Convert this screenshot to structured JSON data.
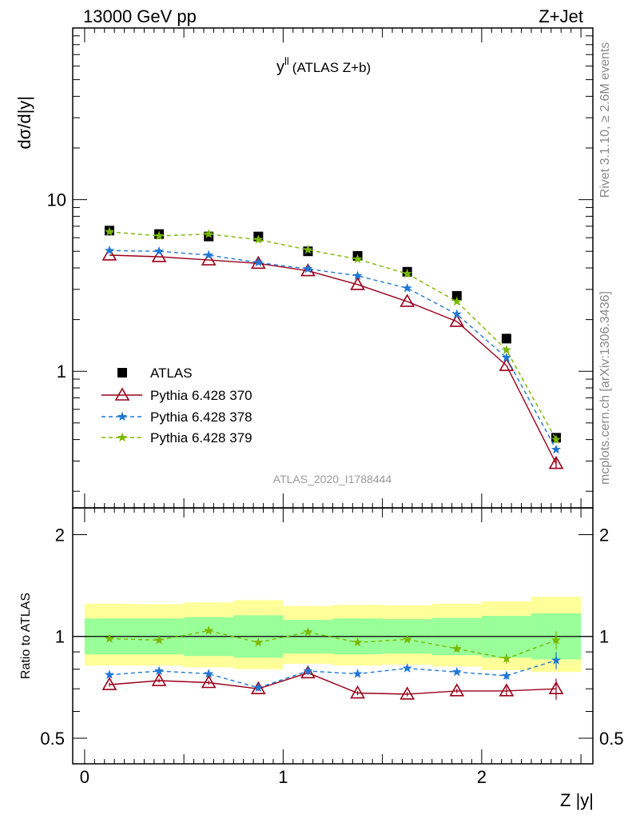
{
  "header": {
    "left": "13000 GeV pp",
    "right": "Z+Jet"
  },
  "side": {
    "rivet": "Rivet 3.1.10, ≥ 2.6M events",
    "mcplots": "mcplots.cern.ch [arXiv:1306.3436]"
  },
  "chart_data": [
    {
      "type": "scatter",
      "title": "y",
      "title_sup": "ll",
      "title_suffix": "(ATLAS Z+b)",
      "ylabel": "dσ/d|y|",
      "yscale": "log",
      "ylim": [
        0.16,
        100
      ],
      "xlim": [
        -0.06,
        2.56
      ],
      "yticklabels": [
        "1",
        "10"
      ],
      "analysis_label": "ATLAS_2020_I1788444",
      "legend_position": "bottom-left",
      "x": [
        0.125,
        0.375,
        0.625,
        0.875,
        1.125,
        1.375,
        1.625,
        1.875,
        2.125,
        2.375
      ],
      "series": [
        {
          "name": "ATLAS",
          "color": "#000000",
          "marker": "square",
          "line": "none",
          "values": [
            6.6,
            6.3,
            6.1,
            6.1,
            5.0,
            4.7,
            3.8,
            2.75,
            1.55,
            0.41
          ]
        },
        {
          "name": "Pythia 6.428 370",
          "color": "#99001a",
          "marker": "triangle-open",
          "line": "solid",
          "values": [
            4.75,
            4.65,
            4.45,
            4.25,
            3.85,
            3.2,
            2.55,
            1.95,
            1.08,
            0.29
          ]
        },
        {
          "name": "Pythia 6.428 378",
          "color": "#1f77d4",
          "marker": "star",
          "line": "dashed",
          "values": [
            5.05,
            5.0,
            4.75,
            4.3,
            3.95,
            3.6,
            3.05,
            2.15,
            1.2,
            0.35
          ]
        },
        {
          "name": "Pythia 6.428 379",
          "color": "#7ab800",
          "marker": "star",
          "line": "dashed",
          "values": [
            6.5,
            6.15,
            6.3,
            5.85,
            5.1,
            4.5,
            3.7,
            2.55,
            1.33,
            0.4
          ]
        }
      ]
    },
    {
      "type": "scatter",
      "ylabel": "Ratio to ATLAS",
      "xlabel": "Z |y|",
      "yscale": "log",
      "ylim": [
        0.42,
        2.4
      ],
      "xlim": [
        -0.06,
        2.56
      ],
      "xticklabels": [
        "0",
        "1",
        "2"
      ],
      "yticklabels": [
        "0.5",
        "1",
        "2"
      ],
      "bands": {
        "inner_color": "#99ff99",
        "outer_color": "#ffff99",
        "inner": [
          [
            0.885,
            1.13
          ],
          [
            0.885,
            1.13
          ],
          [
            0.875,
            1.14
          ],
          [
            0.865,
            1.155
          ],
          [
            0.89,
            1.12
          ],
          [
            0.885,
            1.13
          ],
          [
            0.89,
            1.125
          ],
          [
            0.88,
            1.135
          ],
          [
            0.865,
            1.15
          ],
          [
            0.855,
            1.17
          ]
        ],
        "outer": [
          [
            0.82,
            1.25
          ],
          [
            0.82,
            1.245
          ],
          [
            0.81,
            1.26
          ],
          [
            0.8,
            1.28
          ],
          [
            0.83,
            1.23
          ],
          [
            0.82,
            1.24
          ],
          [
            0.825,
            1.235
          ],
          [
            0.815,
            1.25
          ],
          [
            0.795,
            1.27
          ],
          [
            0.785,
            1.31
          ]
        ]
      },
      "series": [
        {
          "name": "Pythia 6.428 370",
          "color": "#99001a",
          "marker": "triangle-open",
          "line": "solid",
          "values": [
            0.72,
            0.74,
            0.73,
            0.7,
            0.78,
            0.68,
            0.675,
            0.69,
            0.69,
            0.7
          ],
          "errors": [
            0.01,
            0.01,
            0.01,
            0.01,
            0.01,
            0.01,
            0.01,
            0.01,
            0.02,
            0.05
          ]
        },
        {
          "name": "Pythia 6.428 378",
          "color": "#1f77d4",
          "marker": "star",
          "line": "dashed",
          "values": [
            0.77,
            0.79,
            0.775,
            0.705,
            0.79,
            0.775,
            0.805,
            0.785,
            0.765,
            0.85
          ],
          "errors": [
            0.01,
            0.01,
            0.01,
            0.01,
            0.01,
            0.01,
            0.01,
            0.01,
            0.02,
            0.05
          ]
        },
        {
          "name": "Pythia 6.428 379",
          "color": "#7ab800",
          "marker": "star",
          "line": "dashed",
          "values": [
            0.985,
            0.975,
            1.04,
            0.96,
            1.03,
            0.96,
            0.98,
            0.92,
            0.86,
            0.975
          ],
          "errors": [
            0.01,
            0.01,
            0.01,
            0.01,
            0.01,
            0.01,
            0.01,
            0.02,
            0.03,
            0.06
          ]
        }
      ]
    }
  ]
}
